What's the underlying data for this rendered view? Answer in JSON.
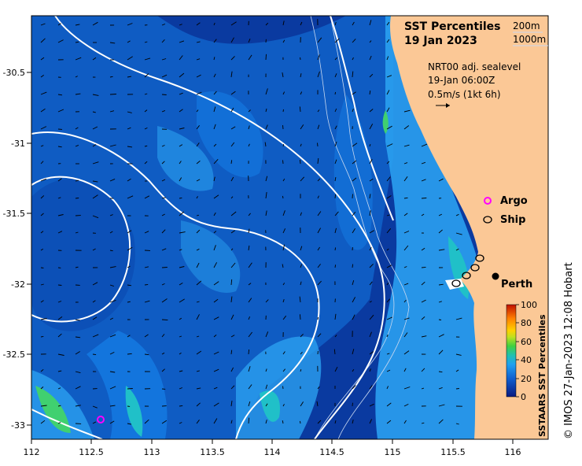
{
  "title": {
    "line1": "SST Percentiles",
    "line2": "19 Jan 2023"
  },
  "depth_labels": [
    "200m",
    "1000m"
  ],
  "current_info": {
    "line1": "NRT00 adj. sealevel",
    "line2": "19-Jan 06:00Z",
    "line3": "0.5m/s (1kt 6h)"
  },
  "legend": {
    "argo": "Argo",
    "ship": "Ship",
    "place": "Perth"
  },
  "colorbar": {
    "title": "SSTAARS SST Percentiles",
    "ticks": [
      "0",
      "20",
      "40",
      "60",
      "80",
      "100"
    ]
  },
  "credit": "© IMOS 27-Jan-2023 12:08 Hobart",
  "axes": {
    "x_ticks": [
      "112",
      "112.5",
      "113",
      "113.5",
      "114",
      "114.5",
      "115",
      "115.5",
      "116"
    ],
    "y_ticks": [
      "-30.5",
      "-31",
      "-31.5",
      "-32",
      "-32.5",
      "-33"
    ]
  },
  "colors": {
    "land": "#fbc896",
    "deep_blue": "#0a3aa0",
    "mid_blue": "#1478e0",
    "light_blue": "#2aa0f0",
    "cyan": "#20c0c8",
    "green": "#40d070",
    "argo_marker": "#ff00ff"
  }
}
